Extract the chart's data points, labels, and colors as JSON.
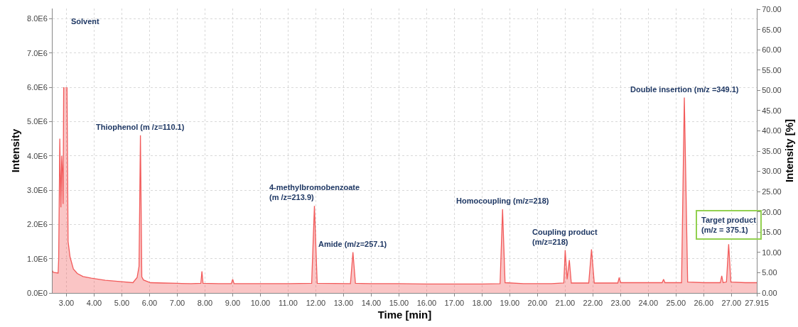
{
  "chart_data": {
    "type": "area",
    "xlabel": "Time [min]",
    "ylabel": "Intensity",
    "y2label": "Intensity [%]",
    "xlim": [
      2.5,
      27.915
    ],
    "xticks": [
      {
        "value": 3,
        "label": "3.00"
      },
      {
        "value": 4,
        "label": "4.00"
      },
      {
        "value": 5,
        "label": "5.00"
      },
      {
        "value": 6,
        "label": "6.00"
      },
      {
        "value": 7,
        "label": "7.00"
      },
      {
        "value": 8,
        "label": "8.00"
      },
      {
        "value": 9,
        "label": "9.00"
      },
      {
        "value": 10,
        "label": "10.00"
      },
      {
        "value": 11,
        "label": "11.00"
      },
      {
        "value": 12,
        "label": "12.00"
      },
      {
        "value": 13,
        "label": "13.00"
      },
      {
        "value": 14,
        "label": "14.00"
      },
      {
        "value": 15,
        "label": "15.00"
      },
      {
        "value": 16,
        "label": "16.00"
      },
      {
        "value": 17,
        "label": "17.00"
      },
      {
        "value": 18,
        "label": "18.00"
      },
      {
        "value": 19,
        "label": "19.00"
      },
      {
        "value": 20,
        "label": "20.00"
      },
      {
        "value": 21,
        "label": "21.00"
      },
      {
        "value": 22,
        "label": "22.00"
      },
      {
        "value": 23,
        "label": "23.00"
      },
      {
        "value": 24,
        "label": "24.00"
      },
      {
        "value": 25,
        "label": "25.00"
      },
      {
        "value": 26,
        "label": "26.00"
      },
      {
        "value": 27,
        "label": "27.00"
      },
      {
        "value": 27.915,
        "label": "27.915"
      }
    ],
    "ylim": [
      0,
      8300000
    ],
    "yticks": [
      {
        "value": 0,
        "label": "0.0E0"
      },
      {
        "value": 1000000,
        "label": "1.0E6"
      },
      {
        "value": 2000000,
        "label": "2.0E6"
      },
      {
        "value": 3000000,
        "label": "3.0E6"
      },
      {
        "value": 4000000,
        "label": "4.0E6"
      },
      {
        "value": 5000000,
        "label": "5.0E6"
      },
      {
        "value": 6000000,
        "label": "6.0E6"
      },
      {
        "value": 7000000,
        "label": "7.0E6"
      },
      {
        "value": 8000000,
        "label": "8.0E6"
      }
    ],
    "y2lim": [
      0,
      70.2
    ],
    "y2ticks": [
      {
        "value": 0,
        "label": "0.00"
      },
      {
        "value": 5,
        "label": "5.00"
      },
      {
        "value": 10,
        "label": "10.00"
      },
      {
        "value": 15,
        "label": "15.00"
      },
      {
        "value": 20,
        "label": "20.00"
      },
      {
        "value": 25,
        "label": "25.00"
      },
      {
        "value": 30,
        "label": "30.00"
      },
      {
        "value": 35,
        "label": "35.00"
      },
      {
        "value": 40,
        "label": "40.00"
      },
      {
        "value": 45,
        "label": "45.00"
      },
      {
        "value": 50,
        "label": "50.00"
      },
      {
        "value": 55,
        "label": "55.00"
      },
      {
        "value": 60,
        "label": "60.00"
      },
      {
        "value": 65,
        "label": "65.00"
      },
      {
        "value": 70,
        "label": "70.00"
      }
    ],
    "grid": true,
    "line_style": "solid",
    "marker": "none",
    "series": [
      {
        "color": "#f25a5a",
        "x": [
          2.5,
          2.52,
          2.7,
          2.72,
          2.76,
          2.8,
          2.83,
          2.86,
          2.88,
          2.9,
          2.94,
          2.98,
          3.02,
          3.06,
          3.13,
          3.25,
          3.39,
          3.6,
          3.9,
          4.4,
          5.0,
          5.4,
          5.55,
          5.62,
          5.67,
          5.72,
          5.78,
          6.03,
          6.5,
          7.0,
          7.5,
          7.85,
          7.89,
          7.93,
          8.5,
          8.95,
          9.0,
          9.05,
          10.0,
          11.0,
          11.85,
          11.95,
          12.05,
          13.25,
          13.34,
          13.43,
          14.0,
          15.0,
          16.0,
          17.0,
          18.0,
          18.65,
          18.74,
          18.83,
          19.5,
          20.5,
          20.95,
          21.0,
          21.07,
          21.15,
          21.22,
          21.85,
          21.95,
          22.05,
          22.9,
          22.95,
          23.0,
          24.0,
          24.5,
          24.55,
          24.6,
          25.2,
          25.3,
          25.42,
          26.0,
          26.6,
          26.65,
          26.7,
          26.82,
          26.9,
          26.98,
          27.5,
          27.915
        ],
        "values": [
          650000,
          600000,
          580000,
          1000000,
          4500000,
          2500000,
          4000000,
          3500000,
          2600000,
          6000000,
          null,
          null,
          6000000,
          1500000,
          1050000,
          700000,
          570000,
          480000,
          430000,
          370000,
          330000,
          300000,
          450000,
          780000,
          4600000,
          470000,
          380000,
          300000,
          290000,
          280000,
          270000,
          280000,
          630000,
          280000,
          270000,
          270000,
          400000,
          270000,
          270000,
          270000,
          280000,
          2540000,
          280000,
          270000,
          1190000,
          280000,
          270000,
          270000,
          260000,
          260000,
          260000,
          270000,
          2440000,
          300000,
          270000,
          270000,
          290000,
          1250000,
          400000,
          960000,
          290000,
          290000,
          1270000,
          290000,
          290000,
          450000,
          300000,
          300000,
          300000,
          400000,
          300000,
          300000,
          5700000,
          320000,
          300000,
          300000,
          500000,
          300000,
          320000,
          1420000,
          320000,
          300000,
          300000
        ]
      }
    ],
    "annotations": [
      "Solvent",
      {
        "text": "Thiophenol (m /z=110.1)",
        "x": 5.67,
        "y": 4600000
      },
      {
        "text": "4-methylbromobenzoate\n(m /z=213.9)",
        "x": 11.95,
        "y": 2540000
      },
      {
        "text": "Amide (m/z=257.1)",
        "x": 13.34,
        "y": 1190000
      },
      {
        "text": "Homocoupling (m/z=218)",
        "x": 18.74,
        "y": 2440000
      },
      {
        "text": "Coupling product\n(m/z=218)",
        "x": 21.0,
        "y": 1250000
      },
      {
        "text": "Double insertion (m/z =349.1)",
        "x": 25.3,
        "y": 5700000
      },
      {
        "text": "Target product\n(m/z = 375.1)",
        "x": 26.9,
        "y": 1420000
      }
    ]
  }
}
